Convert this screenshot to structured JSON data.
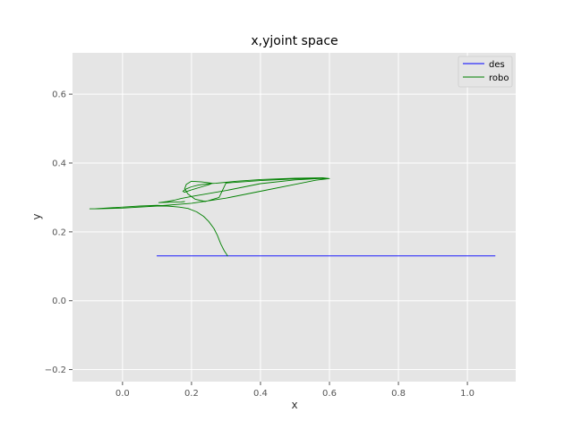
{
  "chart_data": {
    "type": "line",
    "title": "x,yjoint space",
    "xlabel": "x",
    "ylabel": "y",
    "xlim": [
      -0.145,
      1.14
    ],
    "ylim": [
      -0.235,
      0.72
    ],
    "xticks": [
      0.0,
      0.2,
      0.4,
      0.6,
      0.8,
      1.0
    ],
    "xtick_labels": [
      "0.0",
      "0.2",
      "0.4",
      "0.6",
      "0.8",
      "1.0"
    ],
    "yticks": [
      -0.2,
      0.0,
      0.2,
      0.4,
      0.6
    ],
    "ytick_labels": [
      "−0.2",
      "0.0",
      "0.2",
      "0.4",
      "0.6"
    ],
    "grid": true,
    "legend_position": "top-right",
    "series": [
      {
        "name": "des",
        "color": "#0000ff",
        "x": [
          0.1,
          1.08
        ],
        "y": [
          0.13,
          0.13
        ]
      },
      {
        "name": "robo",
        "color": "#008000",
        "x": [
          0.305,
          0.295,
          0.285,
          0.275,
          0.265,
          0.25,
          0.235,
          0.215,
          0.19,
          0.165,
          0.13,
          0.1,
          0.05,
          0.0,
          -0.05,
          -0.08,
          -0.095,
          -0.07,
          0.0,
          0.1,
          0.2,
          0.3,
          0.4,
          0.5,
          0.56,
          0.6,
          0.58,
          0.5,
          0.4,
          0.33,
          0.3,
          0.27,
          0.25,
          0.22,
          0.2,
          0.185,
          0.175,
          0.18,
          0.2,
          0.23,
          0.25,
          0.26,
          0.23,
          0.2,
          0.185,
          0.18,
          0.19,
          0.21,
          0.24,
          0.28,
          0.3,
          0.4,
          0.5,
          0.56,
          0.6,
          0.57,
          0.5,
          0.4,
          0.3,
          0.2,
          0.17,
          0.15,
          0.13,
          0.105,
          0.13,
          0.17,
          0.18
        ],
        "y": [
          0.13,
          0.145,
          0.165,
          0.19,
          0.21,
          0.23,
          0.245,
          0.258,
          0.268,
          0.272,
          0.275,
          0.277,
          0.275,
          0.272,
          0.269,
          0.267,
          0.267,
          0.267,
          0.269,
          0.275,
          0.283,
          0.298,
          0.318,
          0.338,
          0.35,
          0.355,
          0.357,
          0.356,
          0.352,
          0.347,
          0.344,
          0.341,
          0.34,
          0.336,
          0.331,
          0.325,
          0.318,
          0.315,
          0.322,
          0.331,
          0.337,
          0.341,
          0.345,
          0.347,
          0.338,
          0.325,
          0.31,
          0.295,
          0.288,
          0.3,
          0.342,
          0.349,
          0.354,
          0.356,
          0.355,
          0.355,
          0.351,
          0.34,
          0.32,
          0.303,
          0.297,
          0.292,
          0.288,
          0.285,
          0.286,
          0.287,
          0.288
        ]
      }
    ]
  }
}
